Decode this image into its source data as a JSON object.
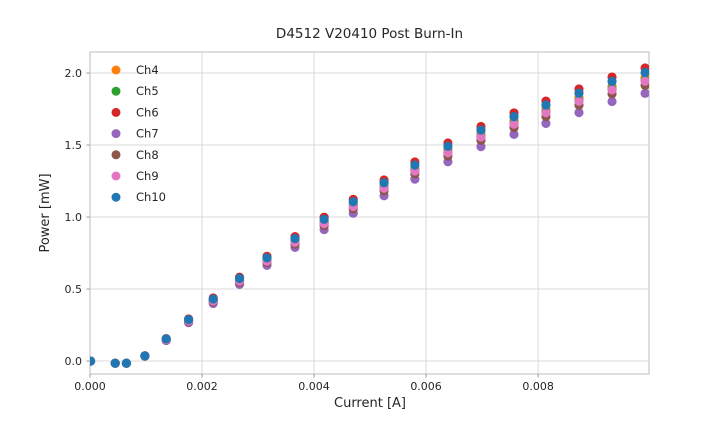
{
  "chart_data": {
    "type": "scatter",
    "title": "D4512 V20410 Post Burn-In",
    "xlabel": "Current [A]",
    "ylabel": "Power [mW]",
    "grid": true,
    "legend_position": "upper left",
    "xlim": [
      0.0,
      0.00998
    ],
    "ylim": [
      -0.09,
      2.146
    ],
    "xticks": {
      "values": [
        0.0,
        0.002,
        0.004,
        0.006,
        0.008
      ],
      "labels": [
        "0.000",
        "0.002",
        "0.004",
        "0.006",
        "0.008"
      ]
    },
    "yticks": {
      "values": [
        0.0,
        0.5,
        1.0,
        1.5,
        2.0
      ],
      "labels": [
        "0.0",
        "0.5",
        "1.0",
        "1.5",
        "2.0"
      ]
    },
    "x": [
      1e-05,
      0.00045,
      0.00065,
      0.00098,
      0.00136,
      0.00176,
      0.0022,
      0.00267,
      0.00316,
      0.00366,
      0.00418,
      0.0047,
      0.00525,
      0.0058,
      0.00639,
      0.00698,
      0.00757,
      0.00814,
      0.00873,
      0.00932,
      0.00991
    ],
    "series": [
      {
        "name": "Ch4",
        "color": "#ff7f0e",
        "values": [
          0.0,
          -0.015,
          -0.015,
          0.035,
          0.152,
          0.283,
          0.424,
          0.564,
          0.704,
          0.836,
          0.968,
          1.088,
          1.217,
          1.338,
          1.467,
          1.578,
          1.669,
          1.748,
          1.829,
          1.91,
          1.971
        ]
      },
      {
        "name": "Ch5",
        "color": "#2ca02c",
        "values": [
          0.0,
          -0.015,
          -0.015,
          0.035,
          0.15,
          0.28,
          0.42,
          0.558,
          0.697,
          0.828,
          0.958,
          1.077,
          1.205,
          1.325,
          1.452,
          1.562,
          1.652,
          1.731,
          1.811,
          1.891,
          1.951
        ]
      },
      {
        "name": "Ch6",
        "color": "#d62728",
        "values": [
          0.0,
          -0.015,
          -0.015,
          0.037,
          0.156,
          0.292,
          0.438,
          0.582,
          0.727,
          0.864,
          0.999,
          1.123,
          1.257,
          1.382,
          1.514,
          1.629,
          1.723,
          1.805,
          1.889,
          1.972,
          2.035
        ]
      },
      {
        "name": "Ch7",
        "color": "#9467bd",
        "values": [
          0.0,
          -0.015,
          -0.015,
          0.033,
          0.143,
          0.267,
          0.4,
          0.532,
          0.664,
          0.789,
          0.913,
          1.026,
          1.148,
          1.263,
          1.384,
          1.489,
          1.574,
          1.65,
          1.726,
          1.802,
          1.859
        ]
      },
      {
        "name": "Ch8",
        "color": "#8c564b",
        "values": [
          0.0,
          -0.015,
          -0.015,
          0.034,
          0.147,
          0.275,
          0.412,
          0.547,
          0.684,
          0.812,
          0.94,
          1.057,
          1.182,
          1.3,
          1.424,
          1.532,
          1.621,
          1.698,
          1.777,
          1.855,
          1.914
        ]
      },
      {
        "name": "Ch9",
        "color": "#e377c2",
        "values": [
          0.0,
          -0.015,
          -0.015,
          0.035,
          0.149,
          0.279,
          0.418,
          0.556,
          0.694,
          0.825,
          0.954,
          1.073,
          1.2,
          1.32,
          1.446,
          1.556,
          1.645,
          1.724,
          1.804,
          1.883,
          1.943
        ]
      },
      {
        "name": "Ch10",
        "color": "#1f77b4",
        "values": [
          0.0,
          -0.015,
          -0.015,
          0.036,
          0.154,
          0.288,
          0.431,
          0.573,
          0.716,
          0.85,
          0.984,
          1.106,
          1.238,
          1.361,
          1.491,
          1.604,
          1.697,
          1.778,
          1.86,
          1.942,
          2.004
        ]
      }
    ]
  },
  "style": {
    "grid_color": "#d9d9d9",
    "spine_color": "#c9c9c9",
    "tick_color": "#9a9a9a",
    "text_color": "#262626",
    "background": "#ffffff"
  }
}
